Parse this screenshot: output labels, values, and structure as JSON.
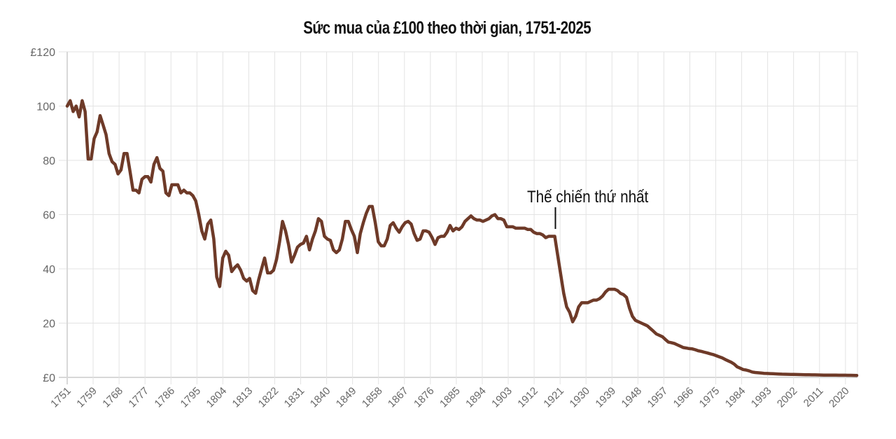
{
  "title": "Sức mua của £100 theo thời gian, 1751-2025",
  "annotation": {
    "label": "Thế chiến thứ nhất",
    "year": 1914
  },
  "colors": {
    "line": "#6e3a28",
    "grid": "#e3e3e3",
    "axis_text": "#666666",
    "title": "#111111"
  },
  "chart_data": {
    "type": "line",
    "title": "Sức mua của £100 theo thời gian, 1751-2025",
    "xlabel": "",
    "ylabel": "",
    "ylim": [
      0,
      120
    ],
    "xlim": [
      1751,
      2025
    ],
    "grid": true,
    "legend": null,
    "y_ticks": [
      "£0",
      "20",
      "40",
      "60",
      "80",
      "100",
      "£120"
    ],
    "y_tick_values": [
      0,
      20,
      40,
      60,
      80,
      100,
      120
    ],
    "x_ticks": [
      "1751",
      "1759",
      "1768",
      "1777",
      "1786",
      "1795",
      "1804",
      "1813",
      "1822",
      "1831",
      "1840",
      "1849",
      "1858",
      "1867",
      "1876",
      "1885",
      "1894",
      "1903",
      "1912",
      "1921",
      "1930",
      "1939",
      "1948",
      "1957",
      "1966",
      "1975",
      "1984",
      "1993",
      "2002",
      "2011",
      "2020"
    ],
    "annotations": [
      {
        "text": "Thế chiến thứ nhất",
        "x": 1914
      }
    ],
    "series": [
      {
        "name": "Sức mua của £100",
        "start_year": 1751,
        "values": [
          100,
          102,
          98,
          100,
          96,
          102,
          98,
          80.5,
          80.5,
          88,
          90.5,
          96.5,
          93,
          89.5,
          82.5,
          79.5,
          78.5,
          75,
          76.5,
          82.5,
          82.5,
          76,
          69,
          69,
          68,
          73,
          74,
          74,
          72,
          78.5,
          81,
          77,
          76,
          68,
          67,
          71,
          71,
          71,
          68,
          69,
          68,
          68,
          67,
          65,
          60,
          54,
          51,
          56.5,
          58,
          51,
          37,
          33.5,
          44,
          46.5,
          45,
          39,
          40.5,
          41.5,
          39.5,
          36.5,
          35.5,
          36.5,
          32,
          31,
          36,
          40,
          44,
          38.5,
          38.5,
          39.5,
          43.5,
          50,
          57.5,
          54,
          49,
          42.5,
          45,
          48,
          49,
          49.5,
          52,
          47,
          51,
          54,
          58.5,
          57.5,
          52,
          51,
          50.5,
          47,
          46,
          47,
          51,
          57.5,
          57.5,
          54.5,
          52,
          46,
          53,
          57,
          60.5,
          63,
          63,
          57,
          50,
          48.5,
          48.5,
          51,
          56,
          57,
          55,
          53.5,
          55.5,
          57,
          57.5,
          56.5,
          53,
          50.5,
          51,
          54,
          54,
          53.5,
          51.5,
          49,
          51.5,
          52,
          52,
          53.5,
          56,
          54,
          55,
          54.5,
          55.5,
          57.5,
          58.5,
          59.5,
          58.5,
          58,
          58,
          57.5,
          58,
          58.5,
          59.5,
          60,
          58.5,
          58.5,
          58,
          55.5,
          55.5,
          55.5,
          55,
          55,
          55,
          55,
          54.5,
          54.5,
          53.5,
          53,
          53,
          52.5,
          51.5,
          52,
          52,
          52,
          45,
          38,
          31,
          26,
          24,
          20.5,
          22.5,
          26,
          27.5,
          27.5,
          27.5,
          28,
          28.5,
          28.5,
          29,
          30,
          31.5,
          32.5,
          32.5,
          32.5,
          32,
          31,
          30.5,
          29.5,
          25.5,
          22.5,
          21,
          20.5,
          20,
          19.5,
          19,
          18,
          17,
          16,
          15.5,
          15,
          14,
          13,
          12.8,
          12.5,
          12,
          11.5,
          11,
          10.8,
          10.6,
          10.5,
          10.2,
          9.8,
          9.6,
          9.3,
          9,
          8.7,
          8.4,
          8,
          7.6,
          7.2,
          6.6,
          6.1,
          5.6,
          4.9,
          3.9,
          3.4,
          2.9,
          2.7,
          2.4,
          2.0,
          1.8,
          1.7,
          1.6,
          1.5,
          1.45,
          1.4,
          1.35,
          1.3,
          1.25,
          1.2,
          1.17,
          1.14,
          1.11,
          1.08,
          1.05,
          1.02,
          1.0,
          0.98,
          0.96,
          0.94,
          0.92,
          0.9,
          0.88,
          0.86,
          0.85,
          0.84,
          0.83,
          0.82,
          0.81,
          0.8,
          0.79,
          0.78,
          0.77,
          0.75,
          0.72
        ]
      }
    ]
  }
}
